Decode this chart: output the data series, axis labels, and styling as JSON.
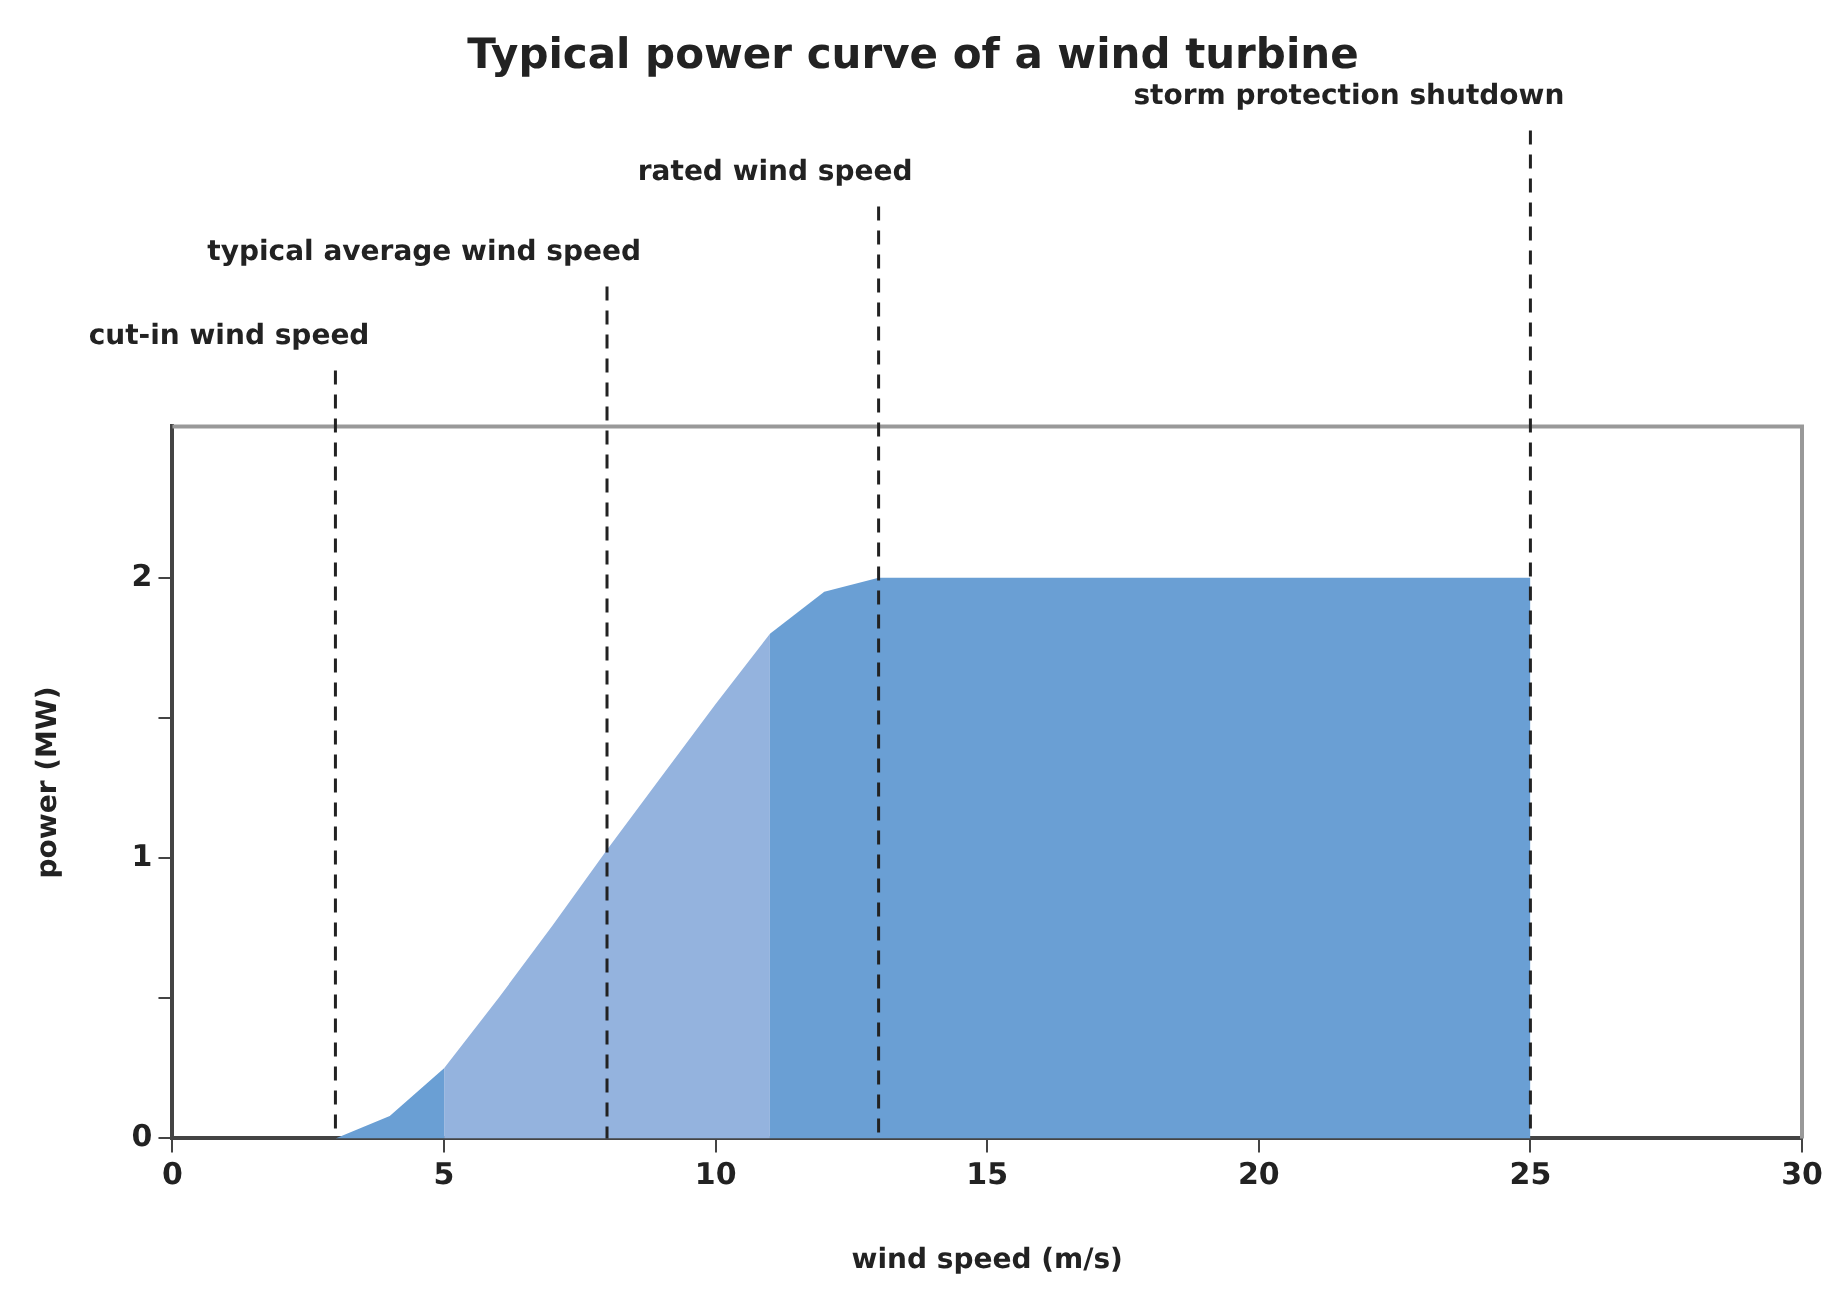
{
  "chart_data": {
    "type": "area",
    "title": "Typical power curve of a wind turbine",
    "xlabel": "wind speed (m/s)",
    "ylabel": "power (MW)",
    "series": [
      {
        "color": "#6a9fd4",
        "x": [
          3,
          4,
          5
        ],
        "values": [
          0,
          0.08,
          0.25
        ]
      },
      {
        "color": "#94b3de",
        "x": [
          5,
          6,
          7,
          8,
          9,
          10,
          11
        ],
        "values": [
          0.25,
          0.5,
          0.76,
          1.03,
          1.29,
          1.55,
          1.8
        ]
      },
      {
        "color": "#6a9fd4",
        "x": [
          11,
          12,
          13,
          25
        ],
        "values": [
          1.8,
          1.95,
          2,
          2
        ]
      }
    ],
    "xlim": [
      0,
      30
    ],
    "xticks": [
      0,
      5,
      10,
      15,
      20,
      25,
      30
    ],
    "ylim": [
      0,
      2.54
    ],
    "yticks": [
      0,
      {
        "value": 0.5,
        "label": null
      },
      1,
      {
        "value": 1.5,
        "label": null
      },
      2
    ],
    "grid": false,
    "legend": false,
    "ref_lines": [
      {
        "axis": "x",
        "value": 3,
        "label": "cut-in wind speed",
        "line_style": "dashed"
      },
      {
        "axis": "x",
        "value": 8,
        "label": "typical average wind speed",
        "line_style": "dashed"
      },
      {
        "axis": "x",
        "value": 13,
        "label": "rated wind speed",
        "line_style": "dashed"
      },
      {
        "axis": "x",
        "value": 25,
        "label": "storm protection shutdown",
        "line_style": "dashed"
      }
    ]
  }
}
